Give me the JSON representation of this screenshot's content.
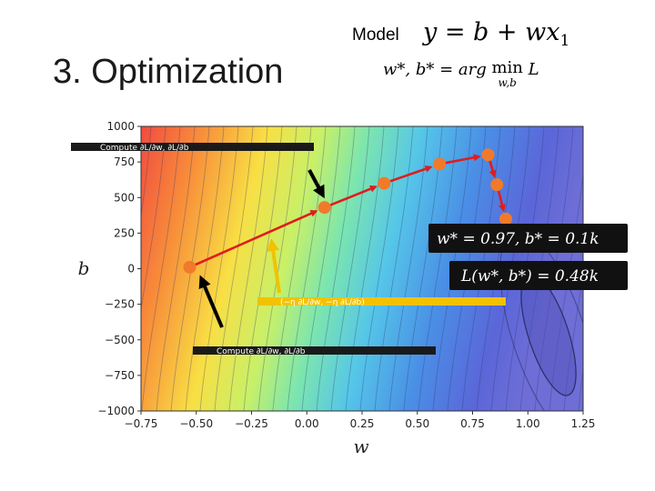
{
  "slide": {
    "title": "3. Optimization",
    "model_label": "Model",
    "model_equation": {
      "lhs": "y = b + wx",
      "subscript": "1"
    },
    "optimization_equation": {
      "lhs": "w*, b* = arg ",
      "operator": "min",
      "operator_under": "w,b",
      "objective": "L"
    }
  },
  "chart_data": {
    "type": "contour",
    "xlabel": "w",
    "ylabel": "b",
    "xlim": [
      -0.75,
      1.25
    ],
    "ylim": [
      -1000,
      1000
    ],
    "x_ticks": [
      -0.75,
      -0.5,
      -0.25,
      0.0,
      0.25,
      0.5,
      0.75,
      1.0,
      1.25
    ],
    "x_tick_labels": [
      "−0.75",
      "−0.50",
      "−0.25",
      "0.00",
      "0.25",
      "0.50",
      "0.75",
      "1.00",
      "1.25"
    ],
    "y_ticks": [
      1000,
      750,
      500,
      250,
      0,
      -250,
      -500,
      -750,
      -1000
    ],
    "y_tick_labels": [
      "1000",
      "750",
      "500",
      "250",
      "0",
      "−250",
      "−500",
      "−750",
      "−1000"
    ],
    "optimization_path": [
      {
        "w": -0.53,
        "b": 10
      },
      {
        "w": 0.08,
        "b": 430
      },
      {
        "w": 0.35,
        "b": 600
      },
      {
        "w": 0.6,
        "b": 735
      },
      {
        "w": 0.82,
        "b": 800
      },
      {
        "w": 0.86,
        "b": 590
      },
      {
        "w": 0.9,
        "b": 350
      }
    ],
    "minimum": {
      "w": 1.05,
      "b": -500
    },
    "result_text": "w* = 0.97, b* = 0.1k",
    "loss_text": "L(w*, b*) = 0.48k",
    "annotations": [
      {
        "text": "Compute ∂L/∂w, ∂L/∂b",
        "color": "#1a1a1a"
      },
      {
        "text": "Compute ∂L/∂w, ∂L/∂b",
        "color": "#1a1a1a"
      },
      {
        "text": "(−η ∂L/∂w, −η ∂L/∂b)",
        "color": "#f2c200"
      }
    ],
    "colors": {
      "path": "#e01c1c",
      "point": "#f07a2a",
      "highlight": "#f2c200",
      "pointer": "#000000"
    }
  }
}
